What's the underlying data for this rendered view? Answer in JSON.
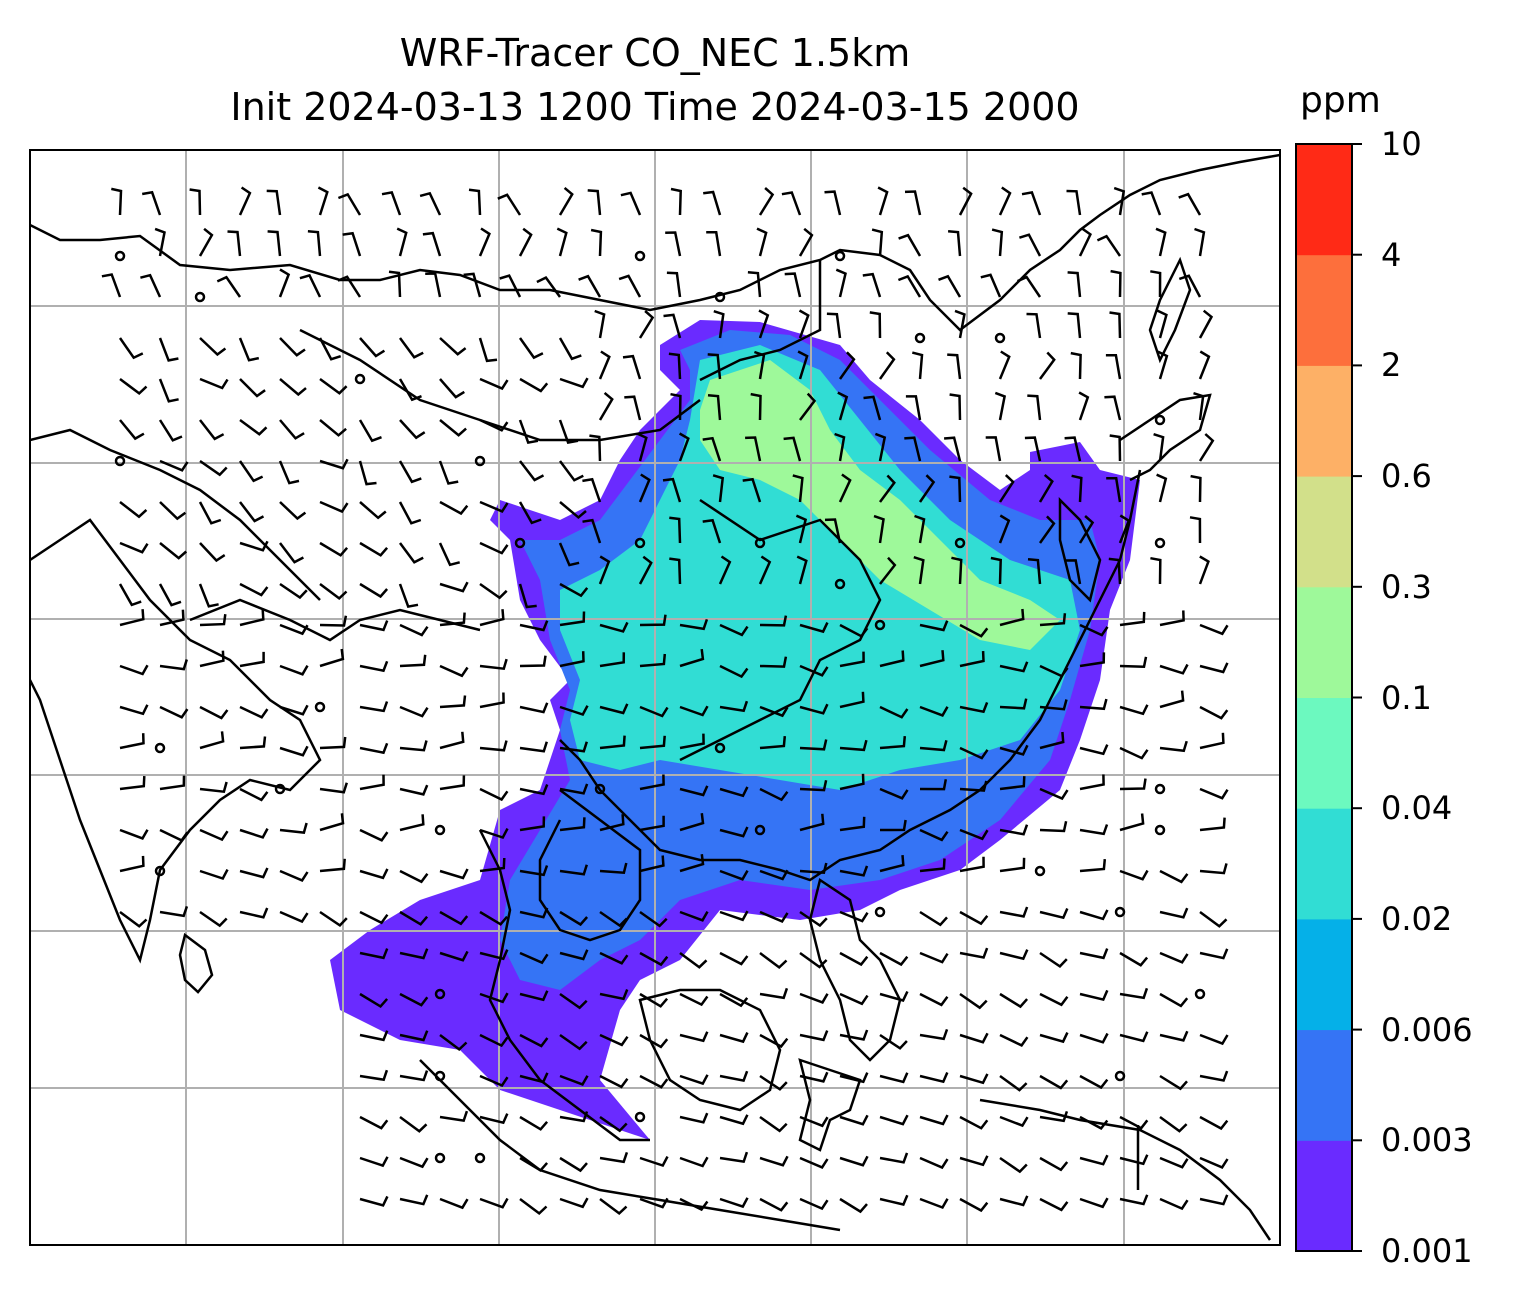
{
  "title": {
    "line1": "WRF-Tracer CO_NEC 1.5km",
    "line2": "Init 2024-03-13 1200 Time 2024-03-15 2000"
  },
  "colorbar": {
    "unit": "ppm",
    "ticks": [
      "0.001",
      "0.003",
      "0.006",
      "0.02",
      "0.04",
      "0.1",
      "0.3",
      "0.6",
      "2",
      "4",
      "10"
    ],
    "colors": [
      "#6a2bff",
      "#3574f5",
      "#05b0e8",
      "#31ddd4",
      "#6cf9bf",
      "#9ef99a",
      "#d2e08a",
      "#fdb066",
      "#fd6f3c",
      "#ff2a16"
    ]
  },
  "map": {
    "grid": "on",
    "field_level_color_index": {
      "outer": 0,
      "mid": 1,
      "inner": 3,
      "core": 5
    }
  }
}
